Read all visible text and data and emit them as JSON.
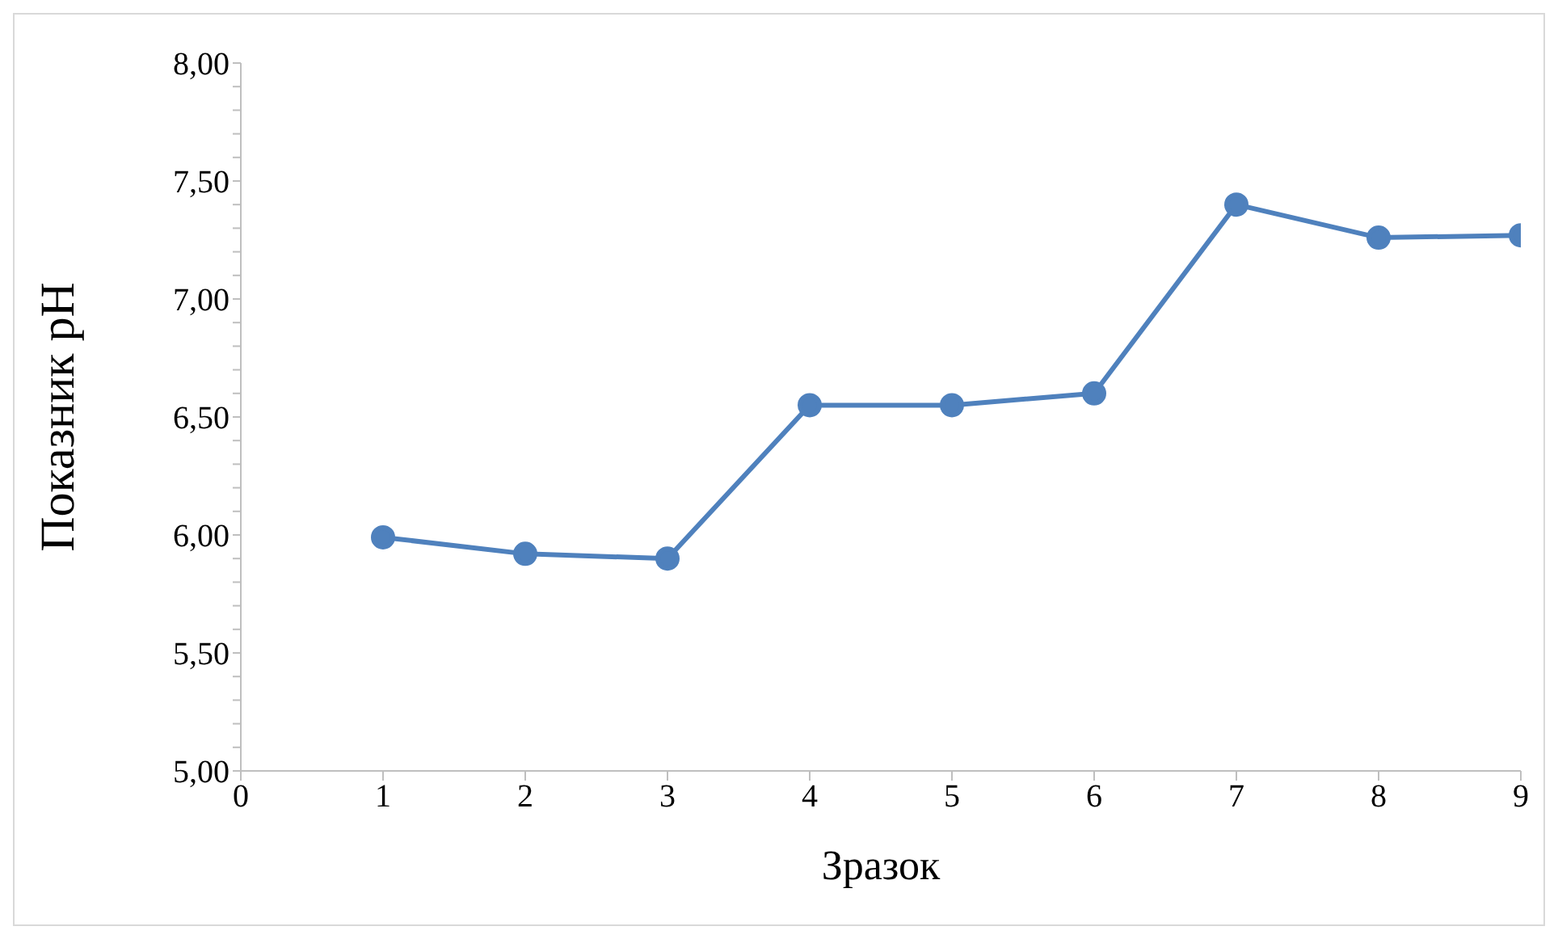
{
  "chart_data": {
    "type": "line",
    "xlabel": "Зразок",
    "ylabel": "Показник pH",
    "x": [
      1,
      2,
      3,
      4,
      5,
      6,
      7,
      8,
      9
    ],
    "series": [
      {
        "color": "#4f81bd",
        "values": [
          5.99,
          5.92,
          5.9,
          6.55,
          6.55,
          6.6,
          7.4,
          7.26,
          7.27
        ]
      }
    ],
    "xlim": [
      0,
      9
    ],
    "xticks": [
      0,
      1,
      2,
      3,
      4,
      5,
      6,
      7,
      8,
      9
    ],
    "ylim": [
      5,
      8
    ],
    "yticks": [
      {
        "value": 5,
        "label": "5,00"
      },
      {
        "value": 5.1,
        "label": null
      },
      {
        "value": 5.2,
        "label": null
      },
      {
        "value": 5.3,
        "label": null
      },
      {
        "value": 5.4,
        "label": null
      },
      {
        "value": 5.5,
        "label": "5,50"
      },
      {
        "value": 5.6,
        "label": null
      },
      {
        "value": 5.7,
        "label": null
      },
      {
        "value": 5.8,
        "label": null
      },
      {
        "value": 5.9,
        "label": null
      },
      {
        "value": 6,
        "label": "6,00"
      },
      {
        "value": 6.1,
        "label": null
      },
      {
        "value": 6.2,
        "label": null
      },
      {
        "value": 6.3,
        "label": null
      },
      {
        "value": 6.4,
        "label": null
      },
      {
        "value": 6.5,
        "label": "6,50"
      },
      {
        "value": 6.6,
        "label": null
      },
      {
        "value": 6.7,
        "label": null
      },
      {
        "value": 6.8,
        "label": null
      },
      {
        "value": 6.9,
        "label": null
      },
      {
        "value": 7,
        "label": "7,00"
      },
      {
        "value": 7.1,
        "label": null
      },
      {
        "value": 7.2,
        "label": null
      },
      {
        "value": 7.3,
        "label": null
      },
      {
        "value": 7.4,
        "label": null
      },
      {
        "value": 7.5,
        "label": "7,50"
      },
      {
        "value": 7.6,
        "label": null
      },
      {
        "value": 7.7,
        "label": null
      },
      {
        "value": 7.8,
        "label": null
      },
      {
        "value": 7.9,
        "label": null
      },
      {
        "value": 8,
        "label": "8,00"
      }
    ],
    "grid": false,
    "legend": false,
    "marker": "circle",
    "line_style": "solid"
  }
}
